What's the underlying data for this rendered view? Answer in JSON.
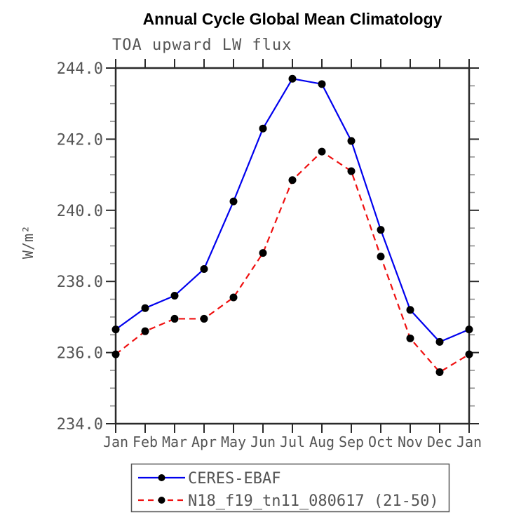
{
  "header": {
    "title": "Annual Cycle Global Mean Climatology",
    "subtitle": "TOA upward LW flux"
  },
  "chart_data": {
    "type": "line",
    "title": "Annual Cycle Global Mean Climatology",
    "subtitle": "TOA upward LW flux",
    "xlabel": "",
    "ylabel": "W/m²",
    "categories": [
      "Jan",
      "Feb",
      "Mar",
      "Apr",
      "May",
      "Jun",
      "Jul",
      "Aug",
      "Sep",
      "Oct",
      "Nov",
      "Dec",
      "Jan"
    ],
    "ylim": [
      234.0,
      244.0
    ],
    "ytick_major": [
      234.0,
      236.0,
      238.0,
      240.0,
      242.0,
      244.0
    ],
    "ytick_minor_step": 0.5,
    "grid": false,
    "legend_position": "bottom",
    "series": [
      {
        "name": "CERES-EBAF",
        "color": "#0000ee",
        "line_style": "solid",
        "marker": "filled-circle",
        "marker_color": "#000000",
        "values": [
          236.65,
          237.25,
          237.6,
          238.35,
          240.25,
          242.3,
          243.7,
          243.55,
          241.95,
          239.45,
          237.2,
          236.3,
          236.65
        ]
      },
      {
        "name": "N18_f19_tn11_080617 (21-50)",
        "color": "#ef1010",
        "line_style": "dashed",
        "marker": "filled-circle",
        "marker_color": "#000000",
        "values": [
          235.95,
          236.6,
          236.95,
          236.95,
          237.55,
          238.8,
          240.85,
          241.65,
          241.1,
          238.7,
          236.4,
          235.45,
          235.95
        ]
      }
    ]
  },
  "colors": {
    "background": "#ffffff",
    "axis_frame": "#2a2a2a",
    "tick_major": "#2a2a2a",
    "tick_minor": "#8a8a8a",
    "label_text": "#555555",
    "title_text": "#000000",
    "legend_border": "#555555",
    "marker": "#000000"
  }
}
